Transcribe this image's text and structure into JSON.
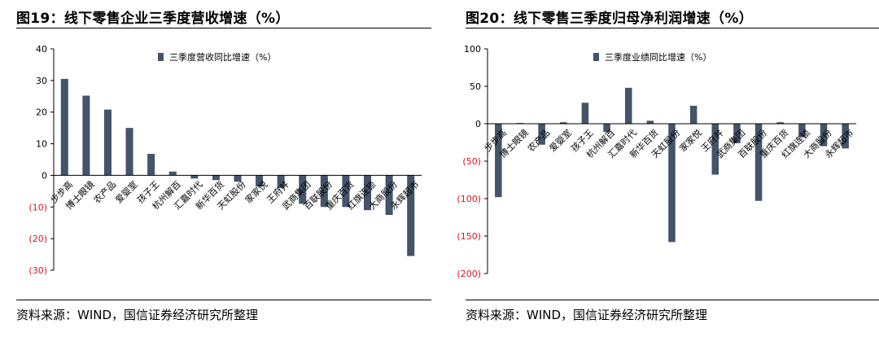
{
  "panels": [
    {
      "title": "图19：线下零售企业三季度营收增速（%）",
      "source": "资料来源：WIND，国信证券经济研究所整理"
    },
    {
      "title": "图20：线下零售三季度归母净利润增速（%）",
      "source": "资料来源：WIND，国信证券经济研究所整理"
    }
  ],
  "chart_data": [
    {
      "type": "bar",
      "categories": [
        "步步高",
        "博士眼镜",
        "农产品",
        "爱婴室",
        "孩子王",
        "杭州解百",
        "汇嘉时代",
        "新华百货",
        "天虹股份",
        "家家悦",
        "王府井",
        "武商集团",
        "百联股份",
        "重庆百货",
        "红旗连锁",
        "大商股份",
        "永辉超市"
      ],
      "series": [
        {
          "name": "三季度营收同比增速（%）",
          "values": [
            30.5,
            25.2,
            20.8,
            15,
            6.8,
            1.2,
            -1,
            -1.5,
            -2,
            -3.5,
            -4,
            -9,
            -10,
            -10,
            -11,
            -12.5,
            -25.5
          ]
        }
      ],
      "ylim": [
        -30,
        40
      ],
      "yticks": [
        40,
        30,
        20,
        10,
        0,
        -10,
        -20,
        -30
      ],
      "ytick_labels": [
        "40",
        "30",
        "20",
        "10",
        "0",
        "(10)",
        "(20)",
        "(30)"
      ],
      "negative_color": "#e0141e",
      "bar_color": "#44546a",
      "legend_position": "top-right"
    },
    {
      "type": "bar",
      "categories": [
        "步步高",
        "博士眼镜",
        "农产品",
        "爱婴室",
        "孩子王",
        "杭州解百",
        "汇嘉时代",
        "新华百货",
        "天虹股份",
        "家家悦",
        "王府井",
        "武商集团",
        "百联股份",
        "重庆百货",
        "红旗连锁",
        "大商股份",
        "永辉超市"
      ],
      "series": [
        {
          "name": "三季度业绩同比增速（%）",
          "values": [
            -98,
            1,
            -28,
            2,
            28,
            -11,
            48,
            4,
            -158,
            24,
            -68,
            -26,
            -103,
            2,
            -18,
            -30,
            -33
          ]
        }
      ],
      "ylim": [
        -200,
        100
      ],
      "yticks": [
        100,
        50,
        0,
        -50,
        -100,
        -150,
        -200
      ],
      "ytick_labels": [
        "100",
        "50",
        "0",
        "(50)",
        "(100)",
        "(150)",
        "(200)"
      ],
      "negative_color": "#e0141e",
      "bar_color": "#44546a",
      "legend_position": "top-right"
    }
  ]
}
